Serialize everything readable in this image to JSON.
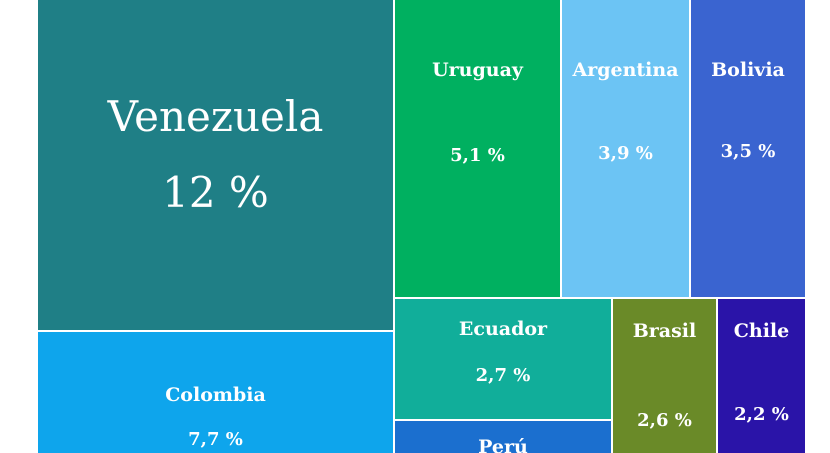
{
  "chart_data": {
    "type": "treemap",
    "items": [
      {
        "name": "Venezuela",
        "label": "12 %",
        "value": 12.0,
        "color": "#1f7f86"
      },
      {
        "name": "Colombia",
        "label": "7,7 %",
        "value": 7.7,
        "color": "#0ea5ec"
      },
      {
        "name": "Uruguay",
        "label": "5,1 %",
        "value": 5.1,
        "color": "#00b060"
      },
      {
        "name": "Argentina",
        "label": "3,9 %",
        "value": 3.9,
        "color": "#6cc4f4"
      },
      {
        "name": "Bolivia",
        "label": "3,5 %",
        "value": 3.5,
        "color": "#3a64d0"
      },
      {
        "name": "Ecuador",
        "label": "2,7 %",
        "value": 2.7,
        "color": "#11ae9a"
      },
      {
        "name": "Brasil",
        "label": "2,6  %",
        "value": 2.6,
        "color": "#6a8a28"
      },
      {
        "name": "Chile",
        "label": "2,2 %",
        "value": 2.2,
        "color": "#2a14a8"
      },
      {
        "name": "Perú",
        "label": "",
        "value": null,
        "color": "#1b6fcf"
      }
    ]
  }
}
